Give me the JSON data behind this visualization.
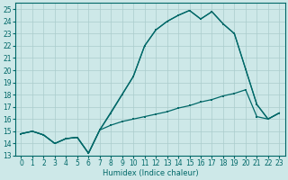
{
  "xlabel": "Humidex (Indice chaleur)",
  "bg_color": "#cde8e8",
  "line_color": "#006868",
  "grid_major_color": "#aacccc",
  "grid_minor_color": "#bbdddd",
  "xlim": [
    -0.5,
    23.5
  ],
  "ylim": [
    13,
    25.5
  ],
  "xticks": [
    0,
    1,
    2,
    3,
    4,
    5,
    6,
    7,
    8,
    9,
    10,
    11,
    12,
    13,
    14,
    15,
    16,
    17,
    18,
    19,
    20,
    21,
    22,
    23
  ],
  "yticks": [
    13,
    14,
    15,
    16,
    17,
    18,
    19,
    20,
    21,
    22,
    23,
    24,
    25
  ],
  "line1_x": [
    0,
    1,
    2,
    3,
    4,
    5,
    6,
    7,
    8,
    9,
    10,
    11,
    12,
    13,
    14,
    15,
    16,
    17,
    18,
    19,
    20,
    21,
    22,
    23
  ],
  "line1_y": [
    14.8,
    15.0,
    14.7,
    14.0,
    14.4,
    14.5,
    13.2,
    15.1,
    15.5,
    15.8,
    16.0,
    16.2,
    16.4,
    16.6,
    16.9,
    17.1,
    17.4,
    17.6,
    17.9,
    18.1,
    18.4,
    16.2,
    16.0,
    16.5
  ],
  "line2_x": [
    0,
    1,
    2,
    3,
    4,
    5,
    6,
    7,
    10,
    11,
    12,
    13,
    14,
    15,
    16,
    17,
    18,
    19,
    20,
    21,
    22,
    23
  ],
  "line2_y": [
    14.8,
    15.0,
    14.7,
    14.0,
    14.4,
    14.5,
    13.2,
    15.1,
    19.5,
    22.0,
    23.3,
    24.0,
    24.5,
    24.9,
    24.2,
    24.8,
    23.8,
    23.0,
    20.1,
    17.2,
    16.0,
    16.5
  ],
  "line3_x": [
    0,
    1,
    2,
    3,
    4,
    5,
    6,
    7,
    8,
    9,
    10,
    11,
    12,
    13,
    14,
    15,
    16,
    17,
    18,
    19,
    20,
    21,
    22,
    23
  ],
  "line3_y": [
    14.8,
    15.0,
    14.7,
    14.0,
    14.4,
    14.5,
    13.2,
    15.1,
    16.5,
    18.0,
    19.5,
    22.0,
    23.3,
    24.0,
    24.5,
    24.9,
    24.2,
    24.8,
    23.8,
    23.0,
    20.1,
    17.2,
    16.0,
    16.5
  ],
  "tick_fontsize": 5.5,
  "xlabel_fontsize": 6,
  "lw": 0.9,
  "ms": 2.0
}
